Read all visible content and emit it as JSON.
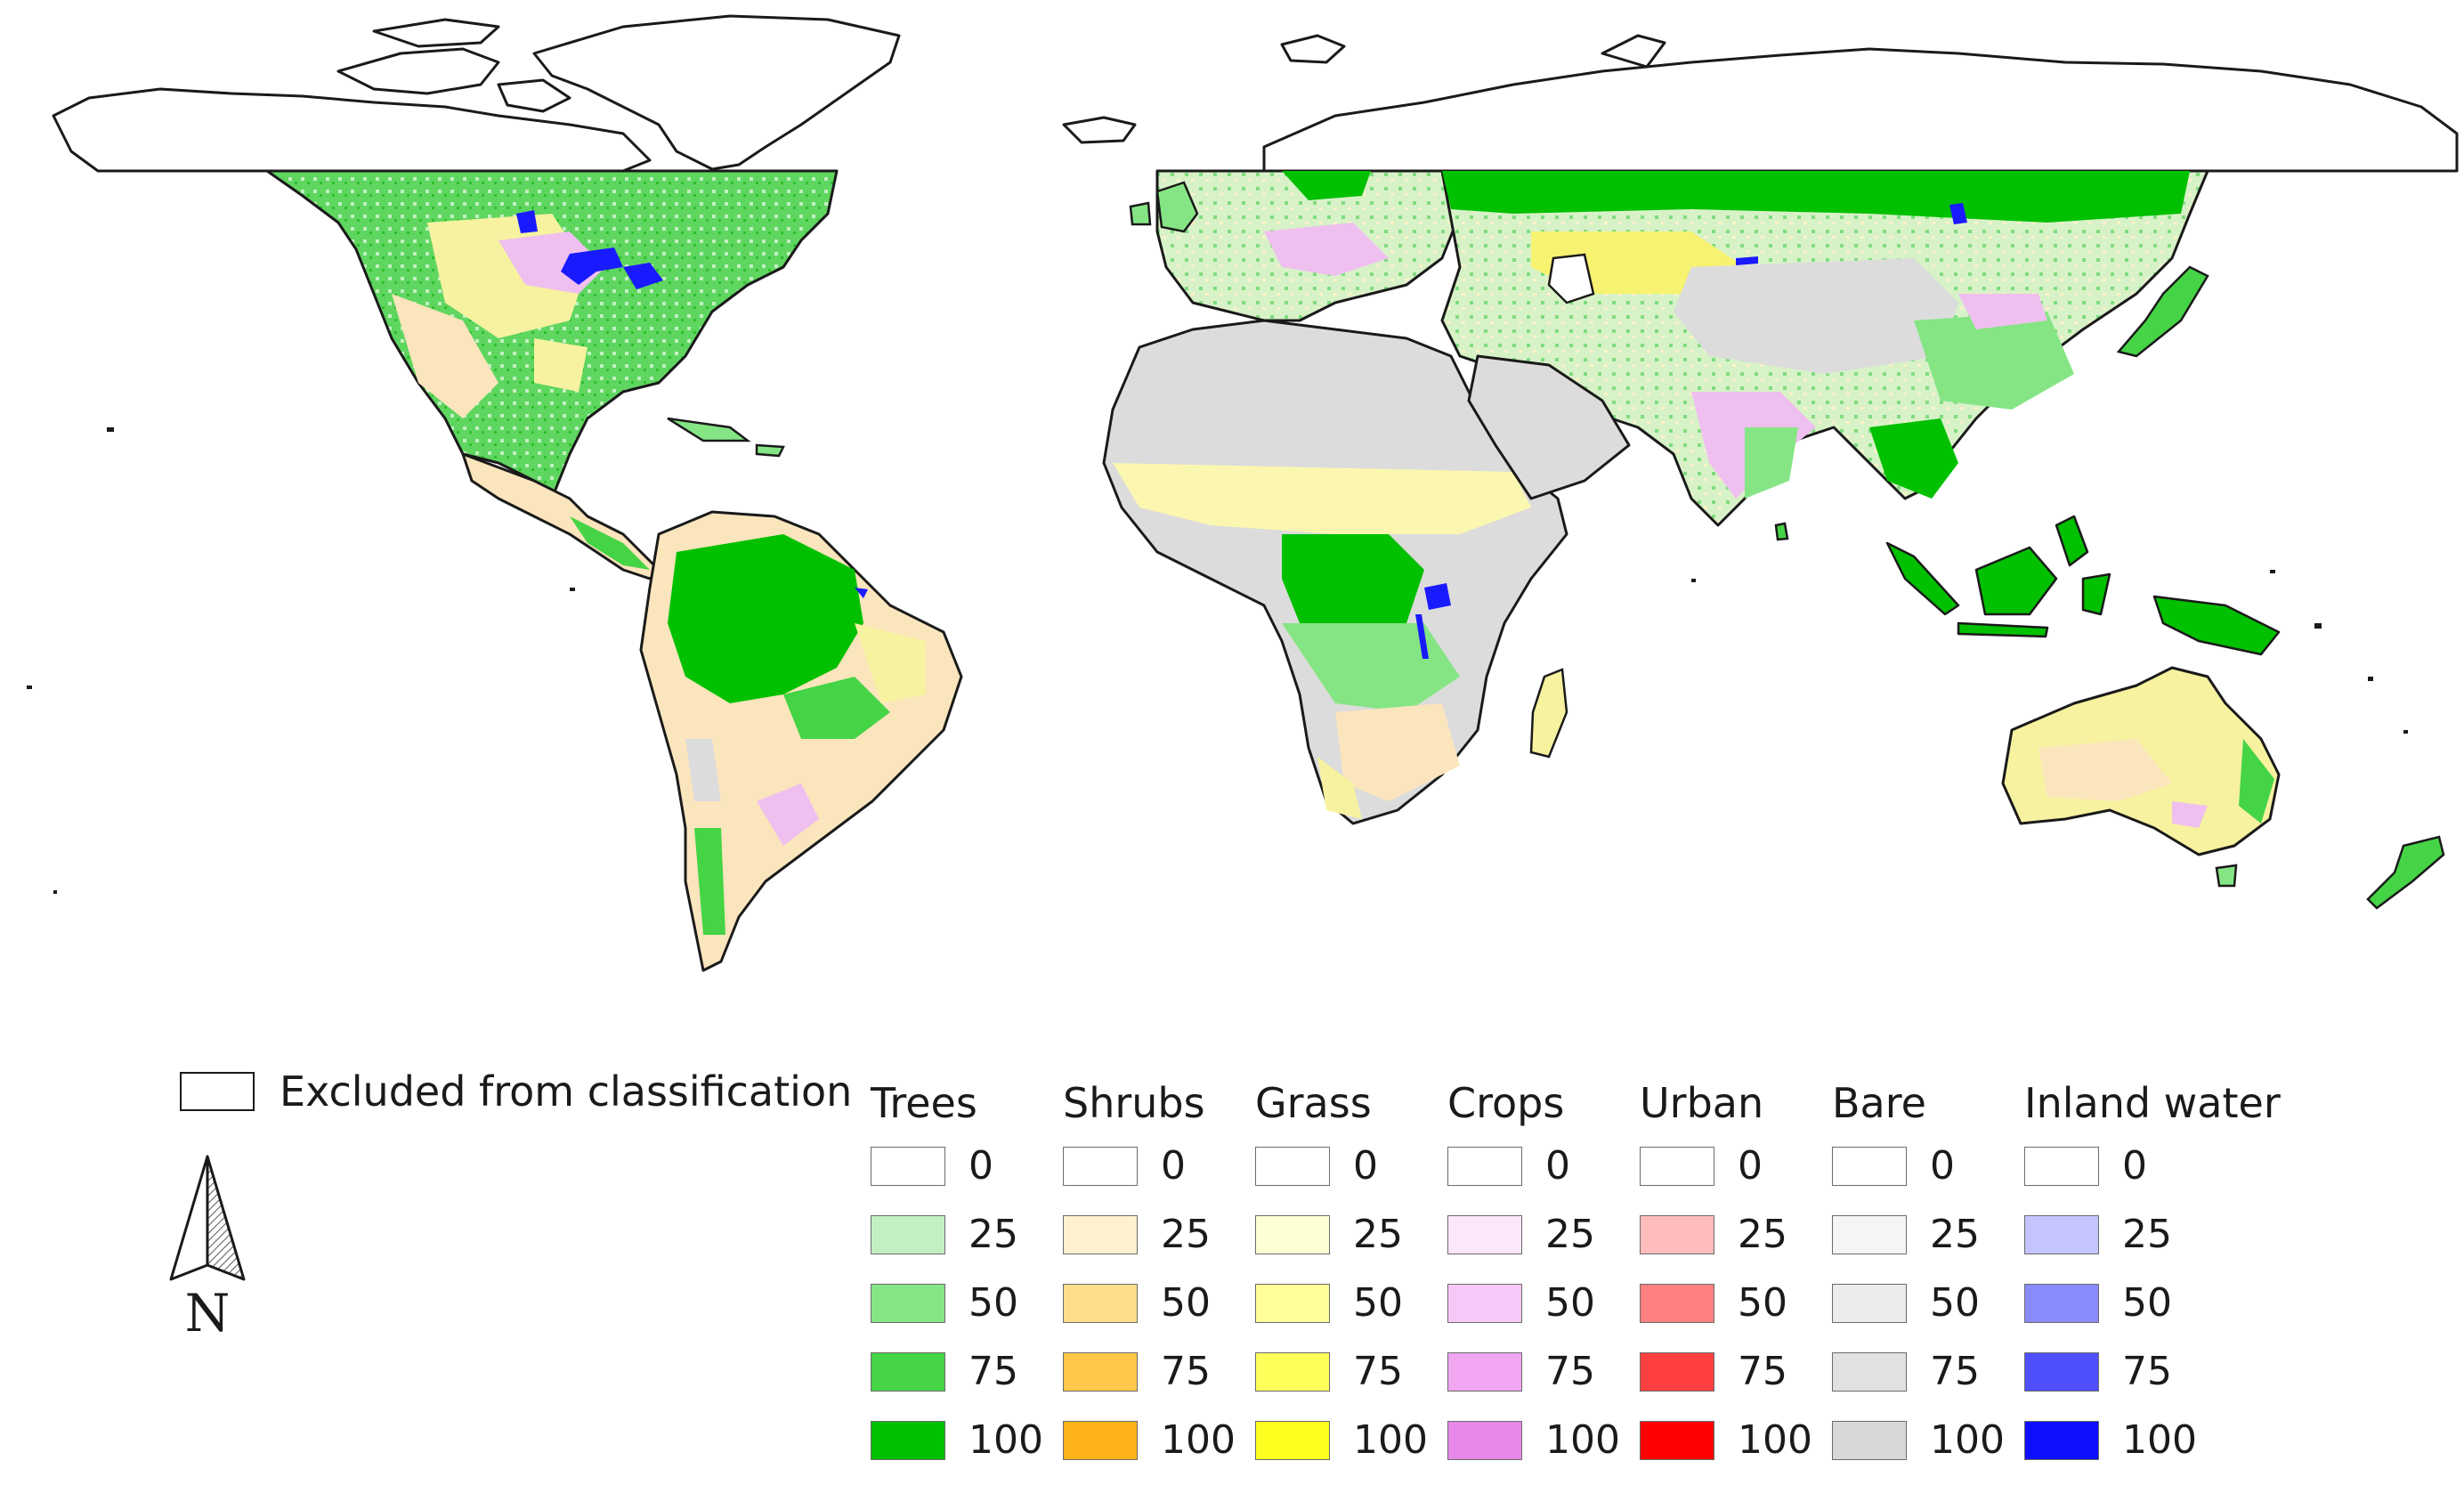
{
  "map": {
    "land_colors": {
      "excluded": "#ffffff",
      "coastline": "#1a1a1a",
      "trees": "#2ecc2e",
      "grass": "#ffff7a",
      "bare": "#dcdcdc",
      "crops": "#f0b8f0",
      "shrubs": "#f8e2b8",
      "water": "#1a1aff"
    }
  },
  "legend": {
    "excluded_label": "Excluded from classification",
    "north_label": "N",
    "row_values": [
      "0",
      "25",
      "50",
      "75",
      "100"
    ],
    "categories": [
      {
        "name": "Trees",
        "colors": [
          "#ffffff",
          "#c2f0c2",
          "#85e585",
          "#45d445",
          "#00c000"
        ]
      },
      {
        "name": "Shrubs",
        "colors": [
          "#ffffff",
          "#fff0d0",
          "#ffdc8c",
          "#ffc84a",
          "#ffb31a"
        ]
      },
      {
        "name": "Grass",
        "colors": [
          "#ffffff",
          "#ffffd6",
          "#ffff99",
          "#ffff5c",
          "#ffff1f"
        ]
      },
      {
        "name": "Crops",
        "colors": [
          "#ffffff",
          "#fce6fc",
          "#f7c8f7",
          "#f0a6f0",
          "#e888e8"
        ]
      },
      {
        "name": "Urban",
        "colors": [
          "#ffffff",
          "#ffbcbc",
          "#ff8080",
          "#ff4040",
          "#ff0000"
        ]
      },
      {
        "name": "Bare",
        "colors": [
          "#ffffff",
          "#f5f5f5",
          "#ebebeb",
          "#e1e1e1",
          "#d8d8d8"
        ]
      },
      {
        "name": "Inland water",
        "colors": [
          "#ffffff",
          "#c4c4ff",
          "#8a8aff",
          "#4f4fff",
          "#0f0fff"
        ]
      }
    ]
  }
}
